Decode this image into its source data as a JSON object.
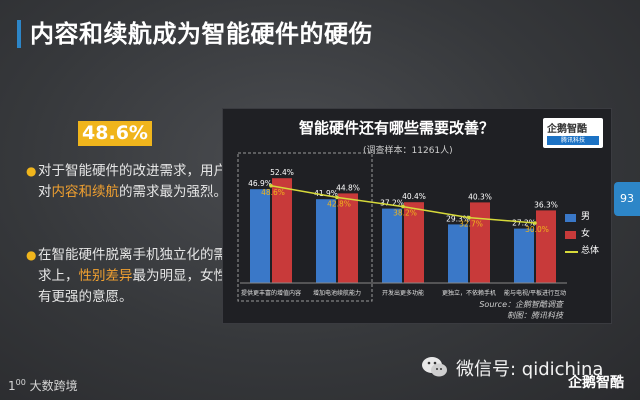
{
  "slide": {
    "title": "内容和续航成为智能硬件的硬伤",
    "stat_badge": "48.6%",
    "bullet1": {
      "pre": "对于智能硬件的改进需求，用户对",
      "hl": "内容和续航",
      "post": "的需求最为强烈。"
    },
    "bullet2": {
      "pre": "在智能硬件脱离手机独立化的需求上，",
      "hl": "性别差异",
      "post": "最为明显，女性有更强的意愿。"
    },
    "page_number": "93",
    "brand_bottom_left": "大数跨境",
    "wechat_label": "微信号: qidichina",
    "brand_bottom_right": "企鹅智酷"
  },
  "colors": {
    "male": "#3a78c8",
    "female": "#c83a3a",
    "total": "#d6d93a",
    "accent": "#2d86c8",
    "badge": "#f0b51c"
  },
  "chart_data": {
    "type": "bar",
    "title": "智能硬件还有哪些需要改善？",
    "subtitle": "(调查样本：11261人)",
    "categories": [
      "提供更丰富的增值内容",
      "增加电池续航能力",
      "开发出更多功能",
      "更独立，不依赖手机",
      "能与电视/平板进行互动"
    ],
    "series": [
      {
        "name": "男",
        "type": "bar",
        "values": [
          46.9,
          41.9,
          37.2,
          29.3,
          27.2
        ]
      },
      {
        "name": "女",
        "type": "bar",
        "values": [
          52.4,
          44.8,
          40.4,
          40.3,
          36.3
        ]
      },
      {
        "name": "总体",
        "type": "line",
        "values": [
          48.6,
          42.8,
          38.2,
          32.7,
          30.0
        ]
      }
    ],
    "ylim": [
      0,
      60
    ],
    "grid": false,
    "legend_position": "right",
    "logo_text": "企鹅智酷",
    "logo_tag": "腾讯科技",
    "source": "Source：企鹅智酷调查",
    "made_by": "制图：腾讯科技"
  }
}
